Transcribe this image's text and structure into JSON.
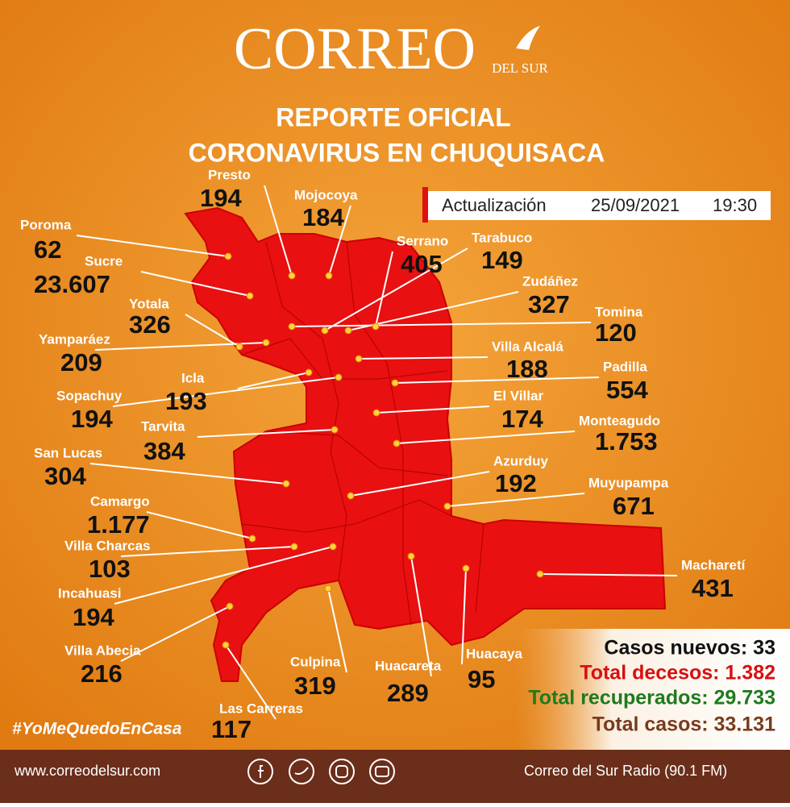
{
  "header": {
    "logo": "CORREO",
    "logo_sub": "DEL SUR",
    "title_lines": [
      "REPORTE OFICIAL",
      "CORONAVIRUS EN CHUQUISACA"
    ]
  },
  "update": {
    "label": "Actualización",
    "date": "25/09/2021",
    "time": "19:30"
  },
  "municipalities": [
    {
      "name": "Poroma",
      "value": "62"
    },
    {
      "name": "Sucre",
      "value": "23.607"
    },
    {
      "name": "Yotala",
      "value": "326"
    },
    {
      "name": "Yamparáez",
      "value": "209"
    },
    {
      "name": "Presto",
      "value": "194"
    },
    {
      "name": "Mojocoya",
      "value": "184"
    },
    {
      "name": "Serrano",
      "value": "405"
    },
    {
      "name": "Tarabuco",
      "value": "149"
    },
    {
      "name": "Zudáñez",
      "value": "327"
    },
    {
      "name": "Tomina",
      "value": "120"
    },
    {
      "name": "Villa Alcalá",
      "value": "188"
    },
    {
      "name": "Padilla",
      "value": "554"
    },
    {
      "name": "Icla",
      "value": "193"
    },
    {
      "name": "Sopachuy",
      "value": "194"
    },
    {
      "name": "El Villar",
      "value": "174"
    },
    {
      "name": "Monteagudo",
      "value": "1.753"
    },
    {
      "name": "Tarvita",
      "value": "384"
    },
    {
      "name": "San Lucas",
      "value": "304"
    },
    {
      "name": "Azurduy",
      "value": "192"
    },
    {
      "name": "Muyupampa",
      "value": "671"
    },
    {
      "name": "Camargo",
      "value": "1.177"
    },
    {
      "name": "Villa Charcas",
      "value": "103"
    },
    {
      "name": "Incahuasi",
      "value": "194"
    },
    {
      "name": "Macharetí",
      "value": "431"
    },
    {
      "name": "Villa Abecia",
      "value": "216"
    },
    {
      "name": "Culpina",
      "value": "319"
    },
    {
      "name": "Huacareta",
      "value": "289"
    },
    {
      "name": "Huacaya",
      "value": "95"
    },
    {
      "name": "Las Carreras",
      "value": "117"
    }
  ],
  "summary": [
    "Casos nuevos: 33",
    "Total decesos: 1.382",
    "Total recuperados: 29.733",
    "Total casos: 33.131"
  ],
  "hashtag": "#YoMeQuedoEnCasa",
  "footer": {
    "website": "www.correodelsur.com",
    "radio": "Correo del Sur Radio (90.1 FM)"
  }
}
